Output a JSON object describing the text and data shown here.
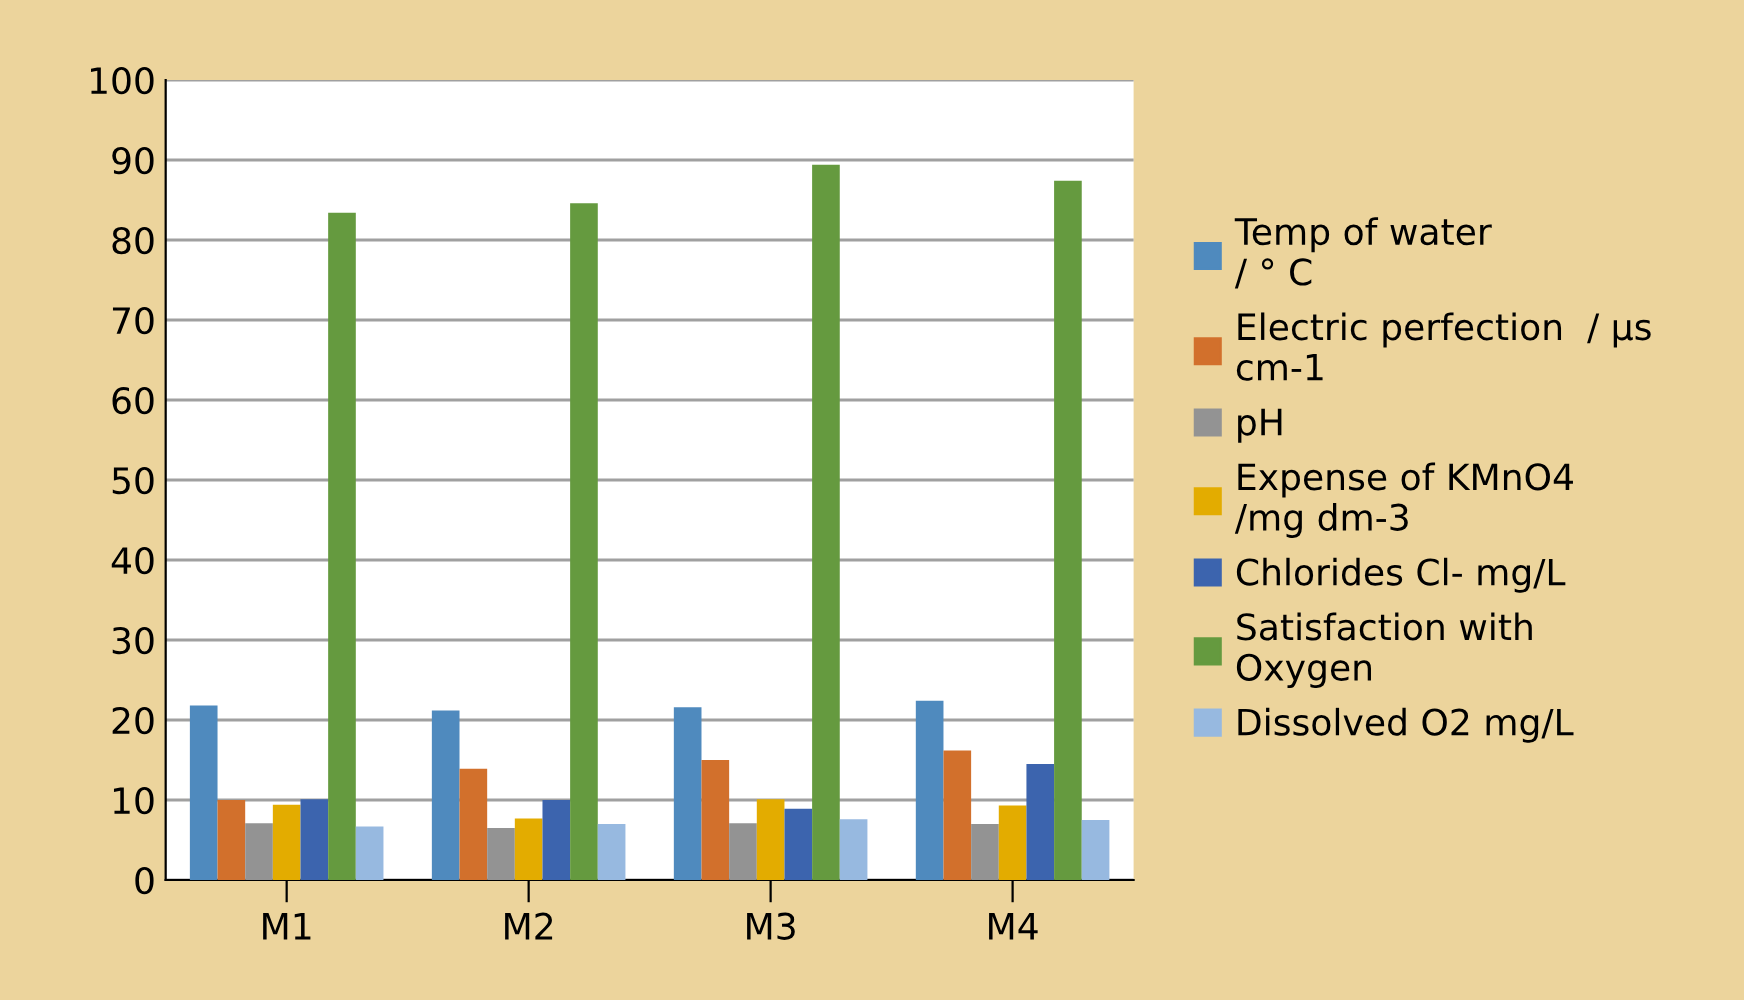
{
  "chart_data": {
    "type": "bar",
    "categories": [
      "M1",
      "M2",
      "M3",
      "M4"
    ],
    "series": [
      {
        "name": "Temp of water\n/ ° C",
        "color": "#4f8abe",
        "values": [
          21.8,
          21.2,
          21.6,
          22.4
        ]
      },
      {
        "name": "Electric perfection  / µs\ncm-1",
        "color": "#d2702c",
        "values": [
          10.0,
          13.9,
          15.0,
          16.2
        ]
      },
      {
        "name": "pH",
        "color": "#939393",
        "values": [
          7.1,
          6.5,
          7.1,
          7.0
        ]
      },
      {
        "name": "Expense of KMnO4\n/mg dm-3",
        "color": "#e3ac00",
        "values": [
          9.4,
          7.7,
          10.1,
          9.3
        ]
      },
      {
        "name": "Chlorides Cl- mg/L",
        "color": "#3c64ae",
        "values": [
          10.1,
          10.0,
          8.9,
          14.5
        ]
      },
      {
        "name": "Satisfaction with\nOxygen",
        "color": "#659a3f",
        "values": [
          83.4,
          84.6,
          89.4,
          87.4
        ]
      },
      {
        "name": "Dissolved O2 mg/L",
        "color": "#97b9e0",
        "values": [
          6.7,
          7.0,
          7.6,
          7.5
        ]
      }
    ],
    "ylim": [
      0,
      100
    ],
    "yticks": [
      0,
      10,
      20,
      30,
      40,
      50,
      60,
      70,
      80,
      90,
      100
    ],
    "grid": "y",
    "legend": "right"
  }
}
